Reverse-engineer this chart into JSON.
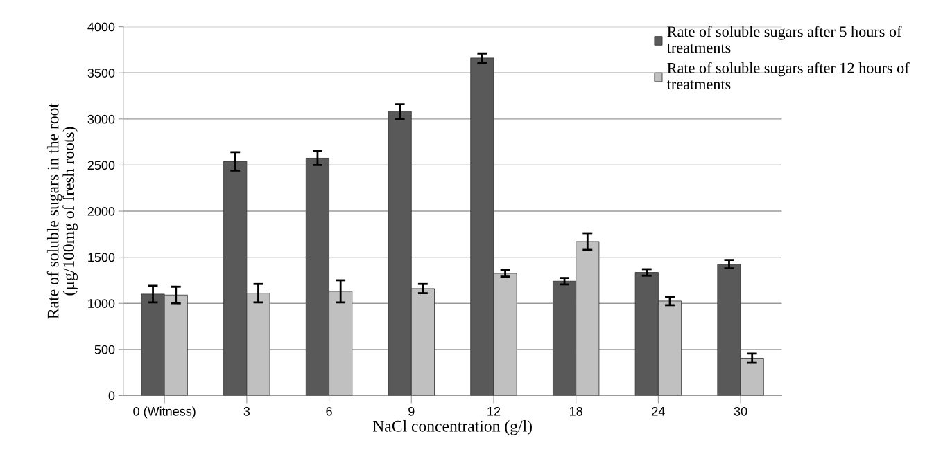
{
  "chart_data": {
    "type": "bar",
    "xlabel": "NaCl concentration (g/l)",
    "ylabel": "Rate of soluble sugars in the root\n(µg/100mg of fresh roots)",
    "categories": [
      "0 (Witness)",
      "3",
      "6",
      "9",
      "12",
      "18",
      "24",
      "30"
    ],
    "series": [
      {
        "name": "Rate of soluble sugars after 5 hours of\ntreatments",
        "color": "#595959",
        "values": [
          1100,
          2540,
          2575,
          3080,
          3660,
          1240,
          1335,
          1425
        ],
        "errors": [
          90,
          100,
          75,
          80,
          50,
          35,
          35,
          45
        ]
      },
      {
        "name": "Rate of soluble sugars after 12 hours of\ntreatments",
        "color": "#c0c0c0",
        "values": [
          1090,
          1110,
          1130,
          1160,
          1325,
          1670,
          1025,
          405
        ],
        "errors": [
          90,
          100,
          120,
          50,
          35,
          90,
          45,
          50
        ]
      }
    ],
    "ylim": [
      0,
      4000
    ],
    "yticks": [
      0,
      500,
      1000,
      1500,
      2000,
      2500,
      3000,
      3500,
      4000
    ],
    "grid": "y",
    "legend": "top right"
  }
}
